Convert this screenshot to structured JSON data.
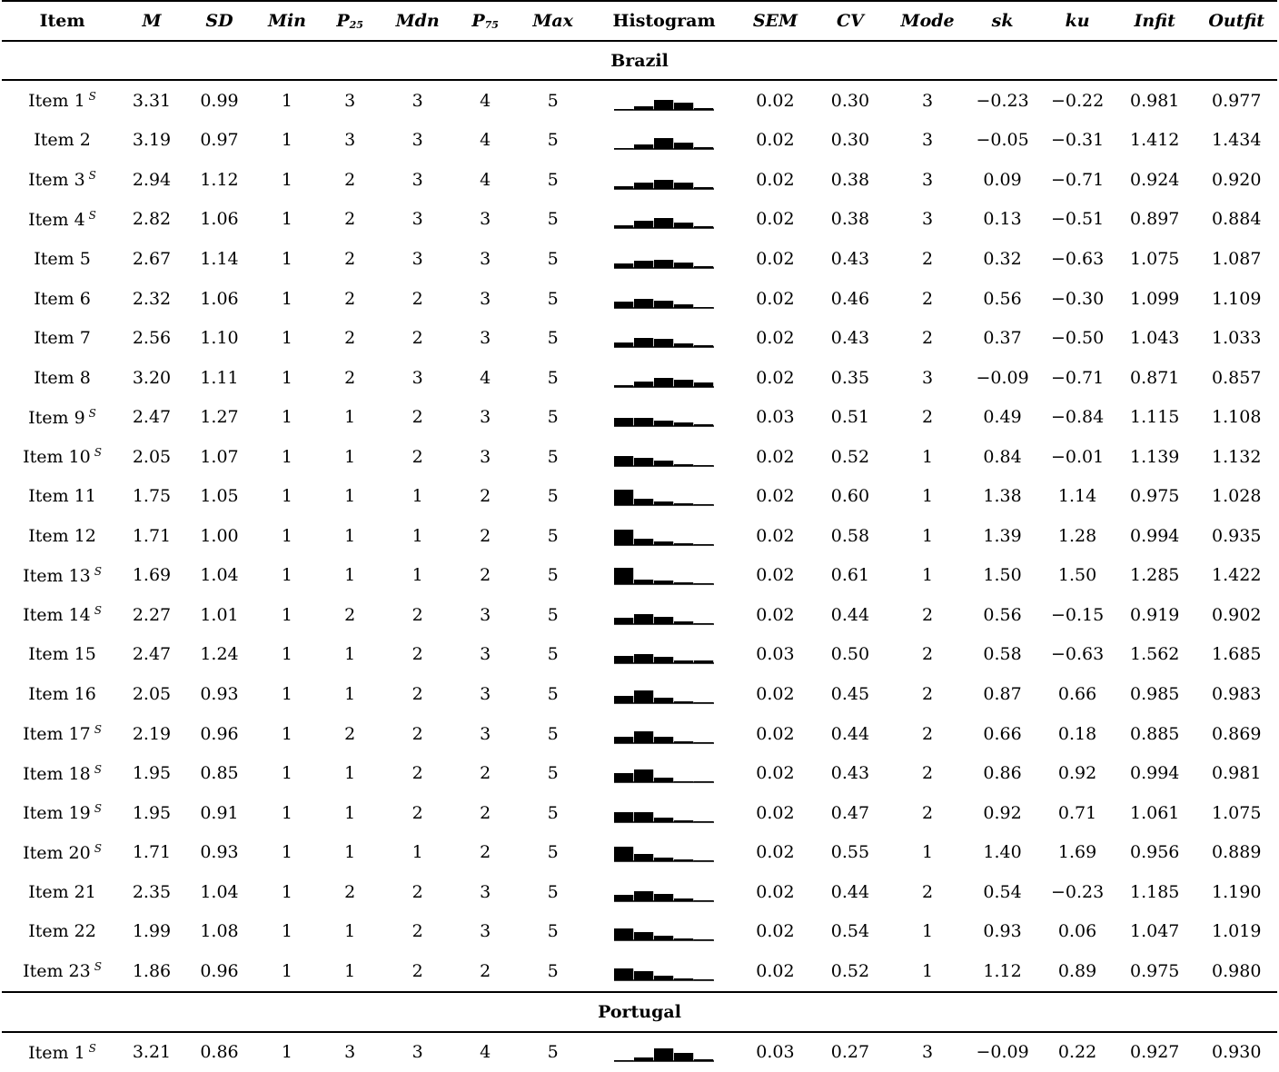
{
  "headers": {
    "item": "Item",
    "m": "M",
    "sd": "SD",
    "min": "Min",
    "p25": "P",
    "p25_sub": "25",
    "mdn": "Mdn",
    "p75": "P",
    "p75_sub": "75",
    "max": "Max",
    "histogram": "Histogram",
    "sem": "SEM",
    "cv": "CV",
    "mode": "Mode",
    "sk": "sk",
    "ku": "ku",
    "infit": "Infit",
    "outfit": "Outfit"
  },
  "sections": [
    {
      "name": "Brazil",
      "rows": [
        {
          "item": "Item 1",
          "s": "S",
          "m": "3.31",
          "sd": "0.99",
          "min": "1",
          "p25": "3",
          "mdn": "3",
          "p75": "4",
          "max": "5",
          "hist": [
            3,
            14,
            37,
            28,
            6
          ],
          "sem": "0.02",
          "cv": "0.30",
          "mode": "3",
          "sk": "−0.23",
          "ku": "−0.22",
          "infit": "0.981",
          "outfit": "0.977"
        },
        {
          "item": "Item 2",
          "s": "",
          "m": "3.19",
          "sd": "0.97",
          "min": "1",
          "p25": "3",
          "mdn": "3",
          "p75": "4",
          "max": "5",
          "hist": [
            3,
            16,
            40,
            24,
            5
          ],
          "sem": "0.02",
          "cv": "0.30",
          "mode": "3",
          "sk": "−0.05",
          "ku": "−0.31",
          "infit": "1.412",
          "outfit": "1.434"
        },
        {
          "item": "Item 3",
          "s": "S",
          "m": "2.94",
          "sd": "1.12",
          "min": "1",
          "p25": "2",
          "mdn": "3",
          "p75": "4",
          "max": "5",
          "hist": [
            9,
            24,
            33,
            23,
            7
          ],
          "sem": "0.02",
          "cv": "0.38",
          "mode": "3",
          "sk": "0.09",
          "ku": "−0.71",
          "infit": "0.924",
          "outfit": "0.920"
        },
        {
          "item": "Item 4",
          "s": "S",
          "m": "2.82",
          "sd": "1.06",
          "min": "1",
          "p25": "2",
          "mdn": "3",
          "p75": "3",
          "max": "5",
          "hist": [
            9,
            27,
            36,
            20,
            5
          ],
          "sem": "0.02",
          "cv": "0.38",
          "mode": "3",
          "sk": "0.13",
          "ku": "−0.51",
          "infit": "0.897",
          "outfit": "0.884"
        },
        {
          "item": "Item 5",
          "s": "",
          "m": "2.67",
          "sd": "1.14",
          "min": "1",
          "p25": "2",
          "mdn": "3",
          "p75": "3",
          "max": "5",
          "hist": [
            16,
            27,
            30,
            21,
            6
          ],
          "sem": "0.02",
          "cv": "0.43",
          "mode": "2",
          "sk": "0.32",
          "ku": "−0.63",
          "infit": "1.075",
          "outfit": "1.087"
        },
        {
          "item": "Item 6",
          "s": "",
          "m": "2.32",
          "sd": "1.06",
          "min": "1",
          "p25": "2",
          "mdn": "2",
          "p75": "3",
          "max": "5",
          "hist": [
            23,
            34,
            27,
            12,
            4
          ],
          "sem": "0.02",
          "cv": "0.46",
          "mode": "2",
          "sk": "0.56",
          "ku": "−0.30",
          "infit": "1.099",
          "outfit": "1.109"
        },
        {
          "item": "Item 7",
          "s": "",
          "m": "2.56",
          "sd": "1.10",
          "min": "1",
          "p25": "2",
          "mdn": "2",
          "p75": "3",
          "max": "5",
          "hist": [
            16,
            34,
            30,
            14,
            6
          ],
          "sem": "0.02",
          "cv": "0.43",
          "mode": "2",
          "sk": "0.37",
          "ku": "−0.50",
          "infit": "1.043",
          "outfit": "1.033"
        },
        {
          "item": "Item 8",
          "s": "",
          "m": "3.20",
          "sd": "1.11",
          "min": "1",
          "p25": "2",
          "mdn": "3",
          "p75": "4",
          "max": "5",
          "hist": [
            6,
            20,
            32,
            26,
            16
          ],
          "sem": "0.02",
          "cv": "0.35",
          "mode": "3",
          "sk": "−0.09",
          "ku": "−0.71",
          "infit": "0.871",
          "outfit": "0.857"
        },
        {
          "item": "Item 9",
          "s": "S",
          "m": "2.47",
          "sd": "1.27",
          "min": "1",
          "p25": "1",
          "mdn": "2",
          "p75": "3",
          "max": "5",
          "hist": [
            30,
            30,
            21,
            14,
            8
          ],
          "sem": "0.03",
          "cv": "0.51",
          "mode": "2",
          "sk": "0.49",
          "ku": "−0.84",
          "infit": "1.115",
          "outfit": "1.108"
        },
        {
          "item": "Item 10",
          "s": "S",
          "m": "2.05",
          "sd": "1.07",
          "min": "1",
          "p25": "1",
          "mdn": "2",
          "p75": "3",
          "max": "5",
          "hist": [
            37,
            30,
            20,
            8,
            3
          ],
          "sem": "0.02",
          "cv": "0.52",
          "mode": "1",
          "sk": "0.84",
          "ku": "−0.01",
          "infit": "1.139",
          "outfit": "1.132"
        },
        {
          "item": "Item 11",
          "s": "",
          "m": "1.75",
          "sd": "1.05",
          "min": "1",
          "p25": "1",
          "mdn": "1",
          "p75": "2",
          "max": "5",
          "hist": [
            55,
            22,
            14,
            5,
            3
          ],
          "sem": "0.02",
          "cv": "0.60",
          "mode": "1",
          "sk": "1.38",
          "ku": "1.14",
          "infit": "0.975",
          "outfit": "1.028"
        },
        {
          "item": "Item 12",
          "s": "",
          "m": "1.71",
          "sd": "1.00",
          "min": "1",
          "p25": "1",
          "mdn": "1",
          "p75": "2",
          "max": "5",
          "hist": [
            56,
            23,
            13,
            5,
            3
          ],
          "sem": "0.02",
          "cv": "0.58",
          "mode": "1",
          "sk": "1.39",
          "ku": "1.28",
          "infit": "0.994",
          "outfit": "0.935"
        },
        {
          "item": "Item 13",
          "s": "S",
          "m": "1.69",
          "sd": "1.04",
          "min": "1",
          "p25": "1",
          "mdn": "1",
          "p75": "2",
          "max": "5",
          "hist": [
            60,
            17,
            12,
            6,
            4
          ],
          "sem": "0.02",
          "cv": "0.61",
          "mode": "1",
          "sk": "1.50",
          "ku": "1.50",
          "infit": "1.285",
          "outfit": "1.422"
        },
        {
          "item": "Item 14",
          "s": "S",
          "m": "2.27",
          "sd": "1.01",
          "min": "1",
          "p25": "2",
          "mdn": "2",
          "p75": "3",
          "max": "5",
          "hist": [
            22,
            38,
            25,
            11,
            3
          ],
          "sem": "0.02",
          "cv": "0.44",
          "mode": "2",
          "sk": "0.56",
          "ku": "−0.15",
          "infit": "0.919",
          "outfit": "0.902"
        },
        {
          "item": "Item 15",
          "s": "",
          "m": "2.47",
          "sd": "1.24",
          "min": "1",
          "p25": "1",
          "mdn": "2",
          "p75": "3",
          "max": "5",
          "hist": [
            26,
            33,
            22,
            11,
            9
          ],
          "sem": "0.03",
          "cv": "0.50",
          "mode": "2",
          "sk": "0.58",
          "ku": "−0.63",
          "infit": "1.562",
          "outfit": "1.685"
        },
        {
          "item": "Item 16",
          "s": "",
          "m": "2.05",
          "sd": "0.93",
          "min": "1",
          "p25": "1",
          "mdn": "2",
          "p75": "3",
          "max": "5",
          "hist": [
            28,
            45,
            20,
            6,
            2
          ],
          "sem": "0.02",
          "cv": "0.45",
          "mode": "2",
          "sk": "0.87",
          "ku": "0.66",
          "infit": "0.985",
          "outfit": "0.983"
        },
        {
          "item": "Item 17",
          "s": "S",
          "m": "2.19",
          "sd": "0.96",
          "min": "1",
          "p25": "2",
          "mdn": "2",
          "p75": "3",
          "max": "5",
          "hist": [
            24,
            43,
            24,
            8,
            1
          ],
          "sem": "0.02",
          "cv": "0.44",
          "mode": "2",
          "sk": "0.66",
          "ku": "0.18",
          "infit": "0.885",
          "outfit": "0.869"
        },
        {
          "item": "Item 18",
          "s": "S",
          "m": "1.95",
          "sd": "0.85",
          "min": "1",
          "p25": "1",
          "mdn": "2",
          "p75": "2",
          "max": "5",
          "hist": [
            32,
            46,
            17,
            4,
            1
          ],
          "sem": "0.02",
          "cv": "0.43",
          "mode": "2",
          "sk": "0.86",
          "ku": "0.92",
          "infit": "0.994",
          "outfit": "0.981"
        },
        {
          "item": "Item 19",
          "s": "S",
          "m": "1.95",
          "sd": "0.91",
          "min": "1",
          "p25": "1",
          "mdn": "2",
          "p75": "2",
          "max": "5",
          "hist": [
            37,
            38,
            18,
            5,
            2
          ],
          "sem": "0.02",
          "cv": "0.47",
          "mode": "2",
          "sk": "0.92",
          "ku": "0.71",
          "infit": "1.061",
          "outfit": "1.075"
        },
        {
          "item": "Item 20",
          "s": "S",
          "m": "1.71",
          "sd": "0.93",
          "min": "1",
          "p25": "1",
          "mdn": "1",
          "p75": "2",
          "max": "5",
          "hist": [
            52,
            28,
            13,
            5,
            2
          ],
          "sem": "0.02",
          "cv": "0.55",
          "mode": "1",
          "sk": "1.40",
          "ku": "1.69",
          "infit": "0.956",
          "outfit": "0.889"
        },
        {
          "item": "Item 21",
          "s": "",
          "m": "2.35",
          "sd": "1.04",
          "min": "1",
          "p25": "2",
          "mdn": "2",
          "p75": "3",
          "max": "5",
          "hist": [
            22,
            37,
            26,
            11,
            4
          ],
          "sem": "0.02",
          "cv": "0.44",
          "mode": "2",
          "sk": "0.54",
          "ku": "−0.23",
          "infit": "1.185",
          "outfit": "1.190"
        },
        {
          "item": "Item 22",
          "s": "",
          "m": "1.99",
          "sd": "1.08",
          "min": "1",
          "p25": "1",
          "mdn": "2",
          "p75": "3",
          "max": "5",
          "hist": [
            42,
            29,
            17,
            8,
            3
          ],
          "sem": "0.02",
          "cv": "0.54",
          "mode": "1",
          "sk": "0.93",
          "ku": "0.06",
          "infit": "1.047",
          "outfit": "1.019"
        },
        {
          "item": "Item 23",
          "s": "S",
          "m": "1.86",
          "sd": "0.96",
          "min": "1",
          "p25": "1",
          "mdn": "2",
          "p75": "2",
          "max": "5",
          "hist": [
            44,
            33,
            15,
            5,
            2
          ],
          "sem": "0.02",
          "cv": "0.52",
          "mode": "1",
          "sk": "1.12",
          "ku": "0.89",
          "infit": "0.975",
          "outfit": "0.980"
        }
      ]
    },
    {
      "name": "Portugal",
      "rows": [
        {
          "item": "Item 1",
          "s": "S",
          "m": "3.21",
          "sd": "0.86",
          "min": "1",
          "p25": "3",
          "mdn": "3",
          "p75": "4",
          "max": "5",
          "hist": [
            2,
            12,
            47,
            31,
            5
          ],
          "sem": "0.03",
          "cv": "0.27",
          "mode": "3",
          "sk": "−0.09",
          "ku": "0.22",
          "infit": "0.927",
          "outfit": "0.930"
        }
      ]
    }
  ]
}
